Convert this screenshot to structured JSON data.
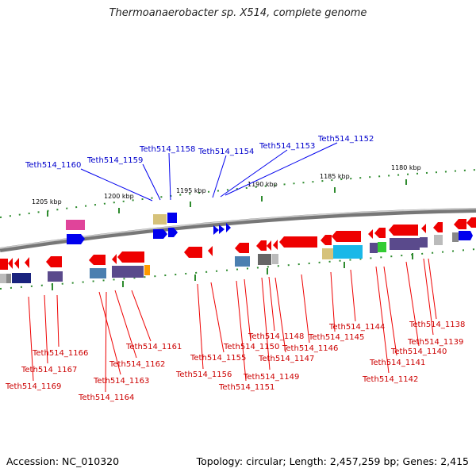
{
  "title": "Thermoanaerobacter sp. X514, complete genome",
  "footer": {
    "accession": "Accession: NC_010320",
    "topology": "Topology: circular; Length: 2,457,259 bp; Genes: 2,415"
  },
  "scale_labels": [
    "1205 kbp",
    "1200 kbp",
    "1195 kbp",
    "1190 kbp",
    "1185 kbp",
    "1180 kbp"
  ],
  "top_labels": [
    "Teth514_1160",
    "Teth514_1159",
    "Teth514_1158",
    "Teth514_1154",
    "Teth514_1153",
    "Teth514_1152"
  ],
  "bottom_labels": [
    "Teth514_1166",
    "Teth514_1167",
    "Teth514_1169",
    "Teth514_1161",
    "Teth514_1162",
    "Teth514_1163",
    "Teth514_1164",
    "Teth514_1155",
    "Teth514_1156",
    "Teth514_1150",
    "Teth514_1151",
    "Teth514_1148",
    "Teth514_1147",
    "Teth514_1149",
    "Teth514_1146",
    "Teth514_1144",
    "Teth514_1145",
    "Teth514_1141",
    "Teth514_1142",
    "Teth514_1140",
    "Teth514_1139",
    "Teth514_1138"
  ],
  "colors": {
    "backbone": "#888888",
    "forward_gene": "#0000ee",
    "reverse_gene": "#ee0000",
    "top_label": "#0000cc",
    "bottom_label": "#cc0000",
    "ticks": "#2e8b2e",
    "pink_feature": "#e0449a",
    "tan_feature": "#d6c27a",
    "steel_feature": "#4b7fb0",
    "purple_feature": "#5a4a8c",
    "cyan_feature": "#1ab8e8",
    "orange_feature": "#ff9900",
    "green_feature": "#33cc33"
  }
}
